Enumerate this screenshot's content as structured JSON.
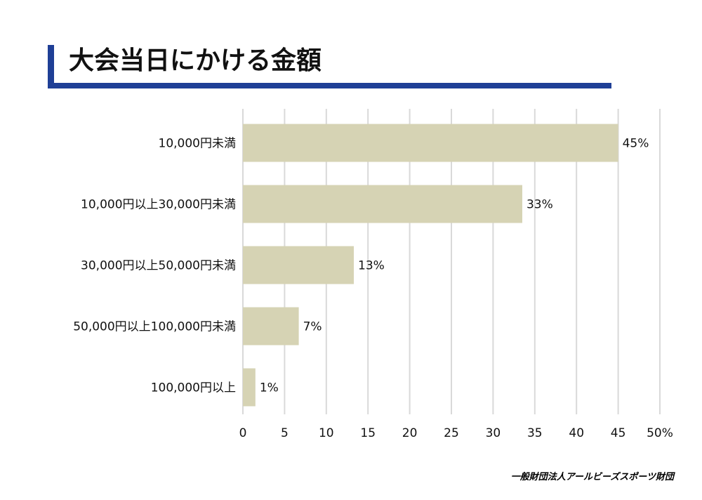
{
  "header": {
    "title": "大会当日にかける金額"
  },
  "footer": {
    "credit": "一般財団法人アールビーズスポーツ財団"
  },
  "colors": {
    "accent": "#1f3f96",
    "bar": "#d6d3b4",
    "grid": "#d9d9d9"
  },
  "chart_data": {
    "type": "bar",
    "orientation": "horizontal",
    "title": "大会当日にかける金額",
    "categories": [
      "10,000円未満",
      "10,000円以上30,000円未満",
      "30,000円以上50,000円未満",
      "50,000円以上100,000円未満",
      "100,000円以上"
    ],
    "values": [
      45,
      33.5,
      13.3,
      6.7,
      1.5
    ],
    "value_labels": [
      "45%",
      "33%",
      "13%",
      "7%",
      "1%"
    ],
    "xlim": [
      0,
      50
    ],
    "x_ticks": [
      "0",
      "5",
      "10",
      "15",
      "20",
      "25",
      "30",
      "35",
      "40",
      "45",
      "50%"
    ],
    "grid": true,
    "legend": "none"
  }
}
